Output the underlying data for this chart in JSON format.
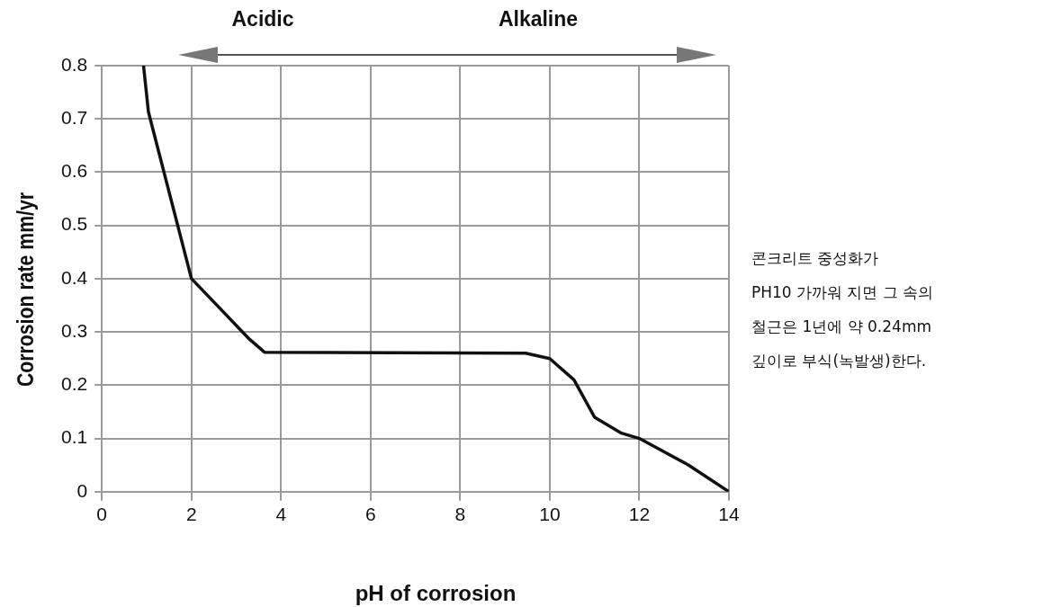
{
  "chart_data": {
    "type": "line",
    "xlabel": "pH of corrosion",
    "ylabel": "Corrosion rate mm/yr",
    "x": [
      0.93,
      1.04,
      2,
      3.3,
      3.63,
      9.46,
      10,
      10.54,
      11,
      11.6,
      12,
      13.1,
      14
    ],
    "series": [
      {
        "color": "#111111",
        "values": [
          0.8,
          0.713,
          0.4,
          0.286,
          0.262,
          0.26,
          0.25,
          0.21,
          0.14,
          0.11,
          0.1,
          0.05,
          0
        ]
      }
    ],
    "xlim": [
      0,
      14
    ],
    "xticks": [
      0,
      2,
      4,
      6,
      8,
      10,
      12,
      14
    ],
    "ylim": [
      0,
      0.8
    ],
    "yticks": [
      0,
      0.1,
      0.2,
      0.3,
      0.4,
      0.5,
      0.6,
      0.7,
      0.8
    ],
    "grid": true,
    "legend": false,
    "marker": "none",
    "line_style": "solid",
    "annotations": [
      "Acidic",
      "Alkaline",
      "콘크리트 중성화가\nPH10 가까워 지면 그 속의\n철근은 1년에 약 0.24mm\n깊이로 부식(녹발생)한다."
    ]
  }
}
